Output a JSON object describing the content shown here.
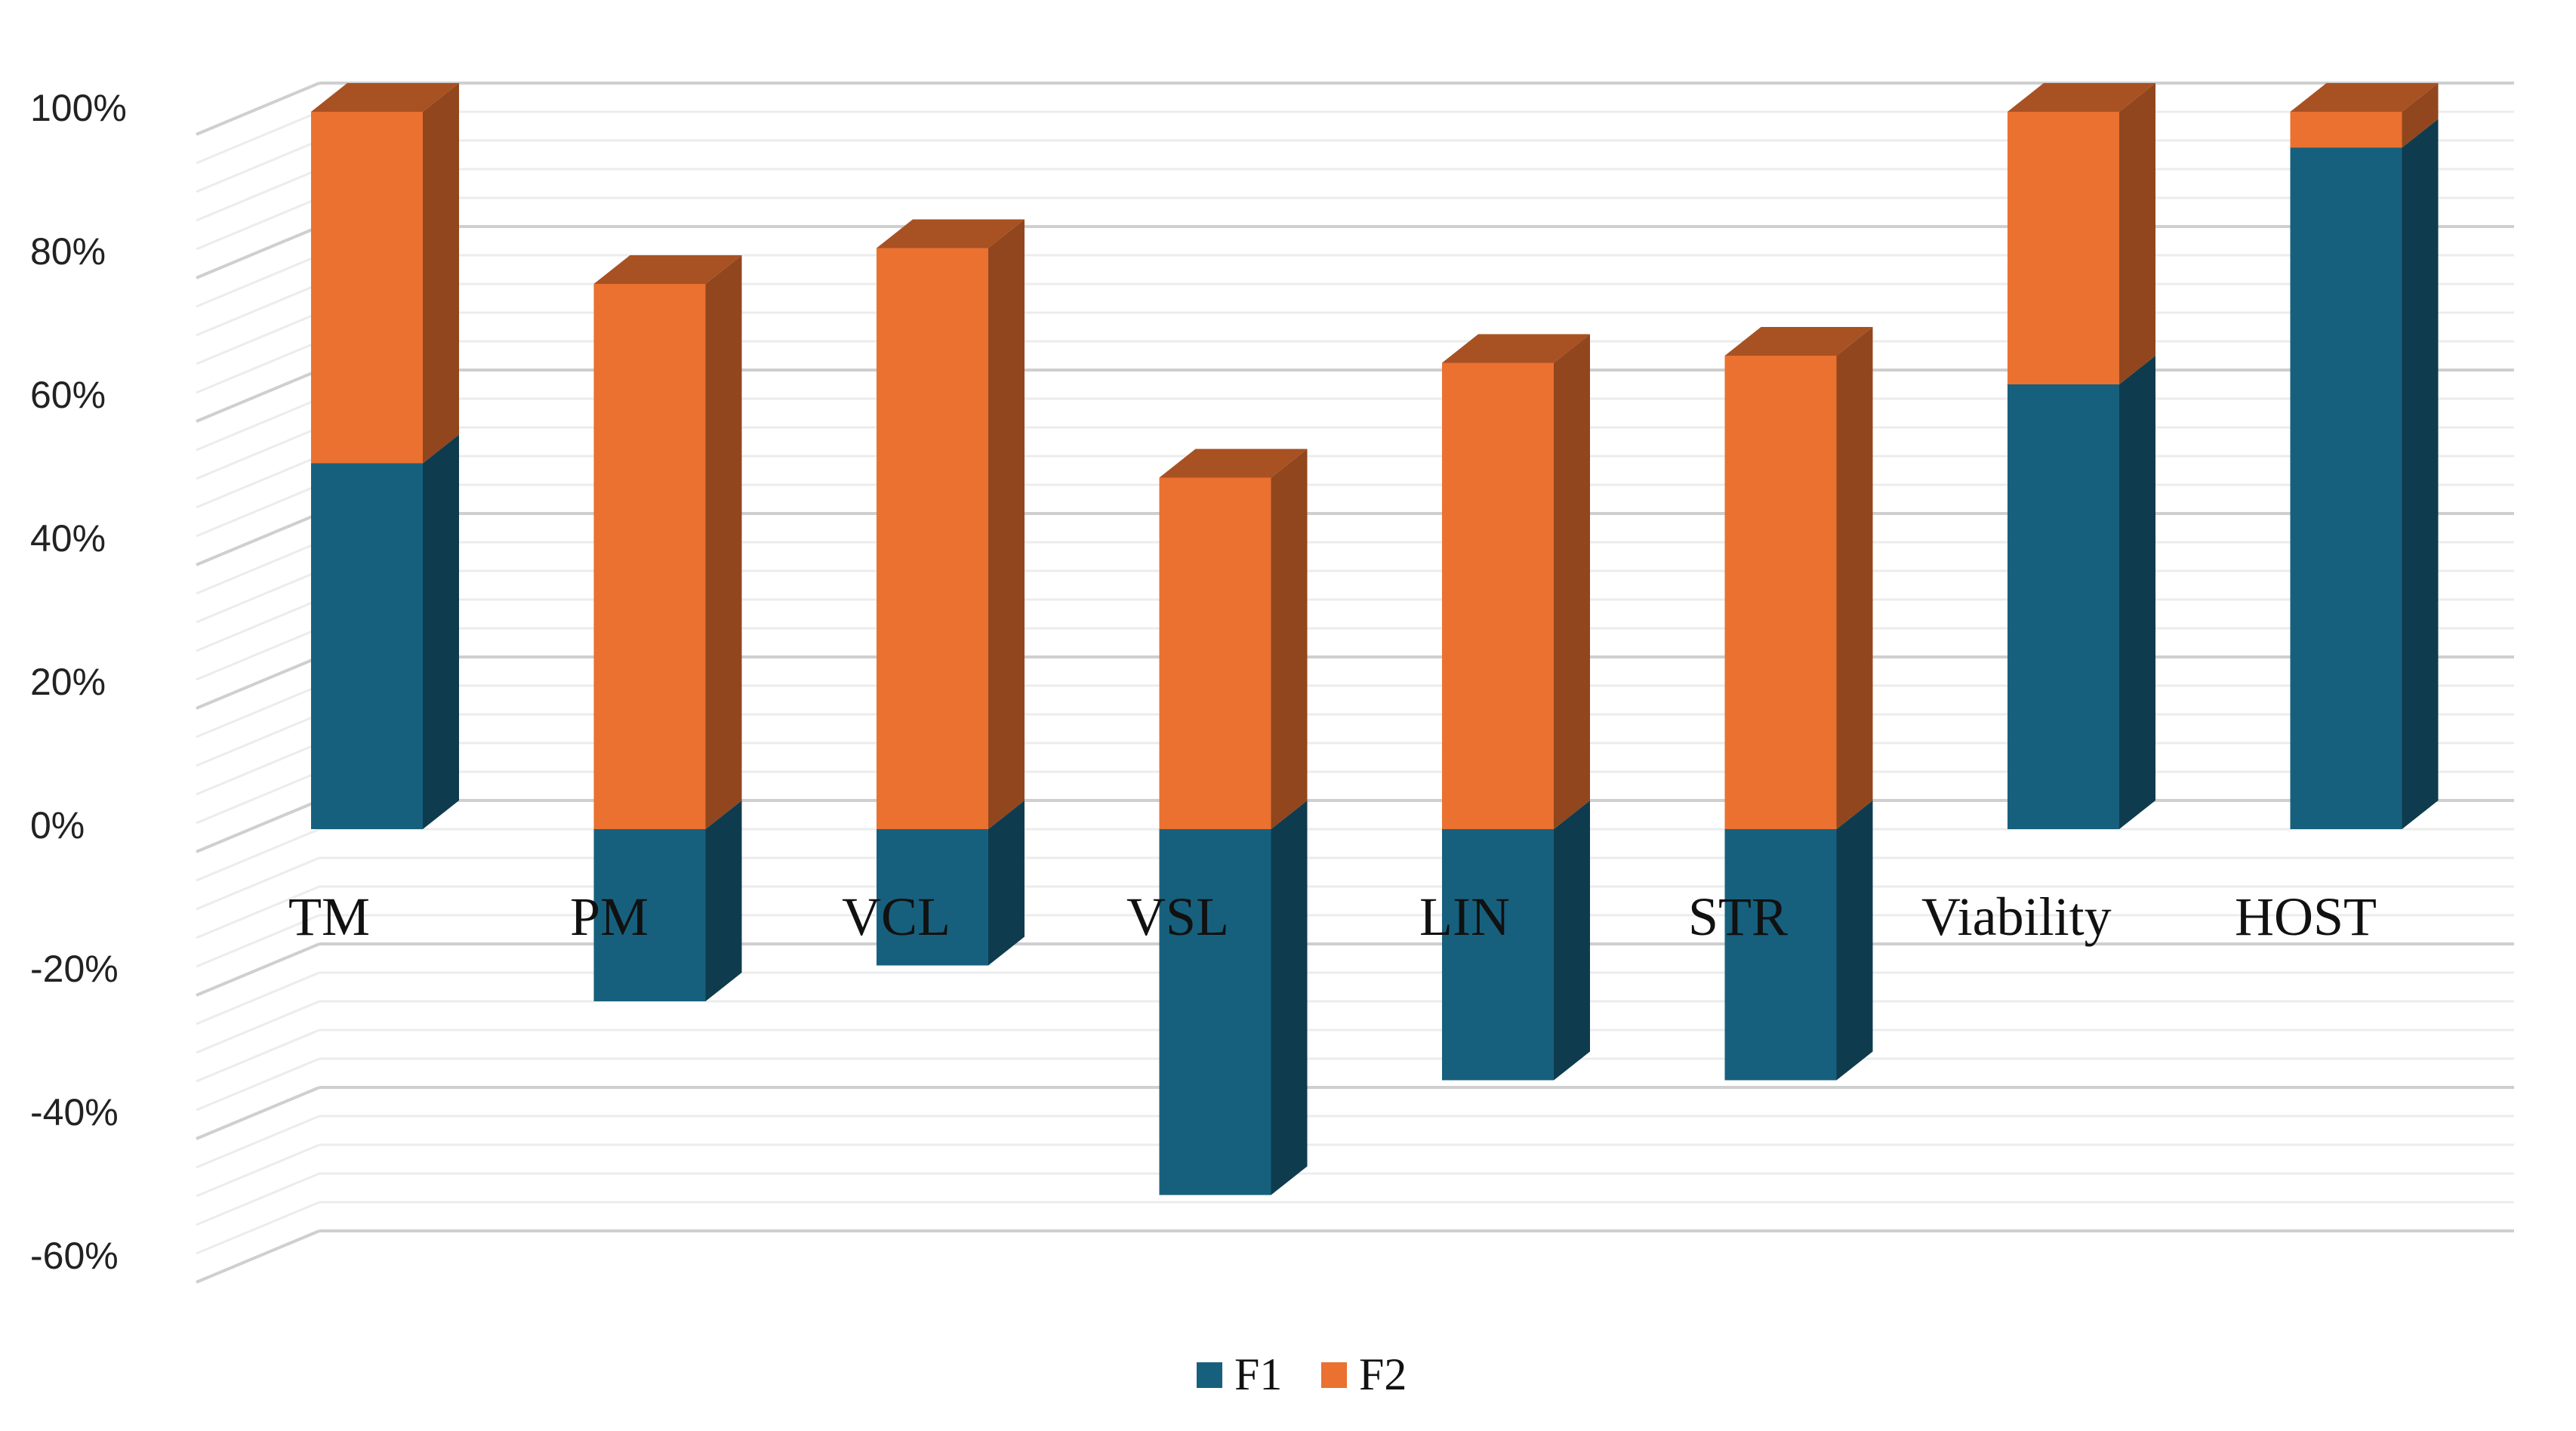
{
  "chart_data": {
    "type": "bar",
    "stacked": true,
    "three_d": true,
    "title": "",
    "xlabel": "",
    "ylabel": "",
    "categories": [
      "TM",
      "PM",
      "VCL",
      "VSL",
      "LIN",
      "STR",
      "Viability",
      "HOST"
    ],
    "series": [
      {
        "name": "F1",
        "values": [
          51,
          -24,
          -19,
          -51,
          -35,
          -35,
          62,
          95
        ]
      },
      {
        "name": "F2",
        "values": [
          49,
          76,
          81,
          49,
          65,
          66,
          38,
          5
        ]
      }
    ],
    "ylim": [
      -60,
      100
    ],
    "y_ticks": [
      "100%",
      "80%",
      "60%",
      "40%",
      "20%",
      "0%",
      "-20%",
      "-40%",
      "-60%"
    ],
    "grid": true,
    "legend_position": "bottom"
  },
  "colors": {
    "F1": "#17607d",
    "F2": "#ea7130",
    "grid": "#d9d9d9"
  }
}
